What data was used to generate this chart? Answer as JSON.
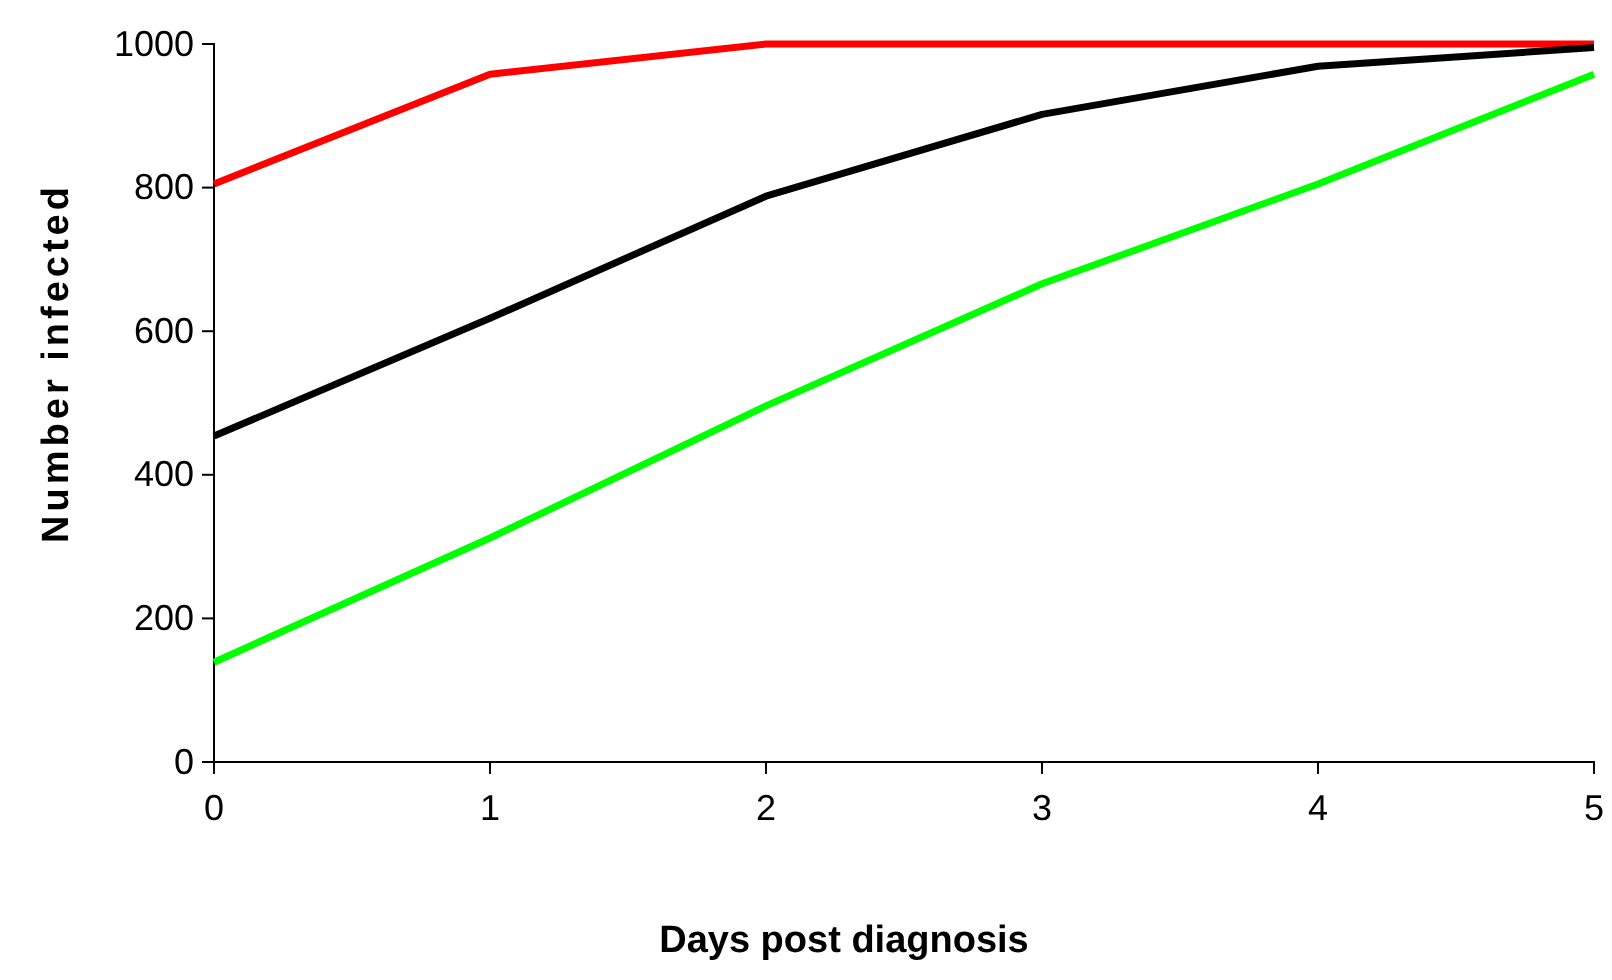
{
  "chart_data": {
    "type": "line",
    "xlabel": "Days post diagnosis",
    "ylabel": "Number infected",
    "x": [
      0,
      1,
      2,
      3,
      4,
      5
    ],
    "xlim": [
      0,
      5
    ],
    "xticks": [
      0,
      1,
      2,
      3,
      4,
      5
    ],
    "ylim": [
      0,
      1000
    ],
    "yticks": [
      0,
      200,
      400,
      600,
      800,
      1000
    ],
    "grid": false,
    "marker": "none",
    "line_style": "solid",
    "series": [
      {
        "color": "#ff0000",
        "values": [
          805,
          958,
          1000,
          1000,
          1000,
          1000
        ]
      },
      {
        "color": "#000000",
        "values": [
          454,
          618,
          788,
          902,
          969,
          995
        ]
      },
      {
        "color": "#00ff00",
        "values": [
          139,
          312,
          496,
          666,
          805,
          958
        ]
      }
    ]
  }
}
